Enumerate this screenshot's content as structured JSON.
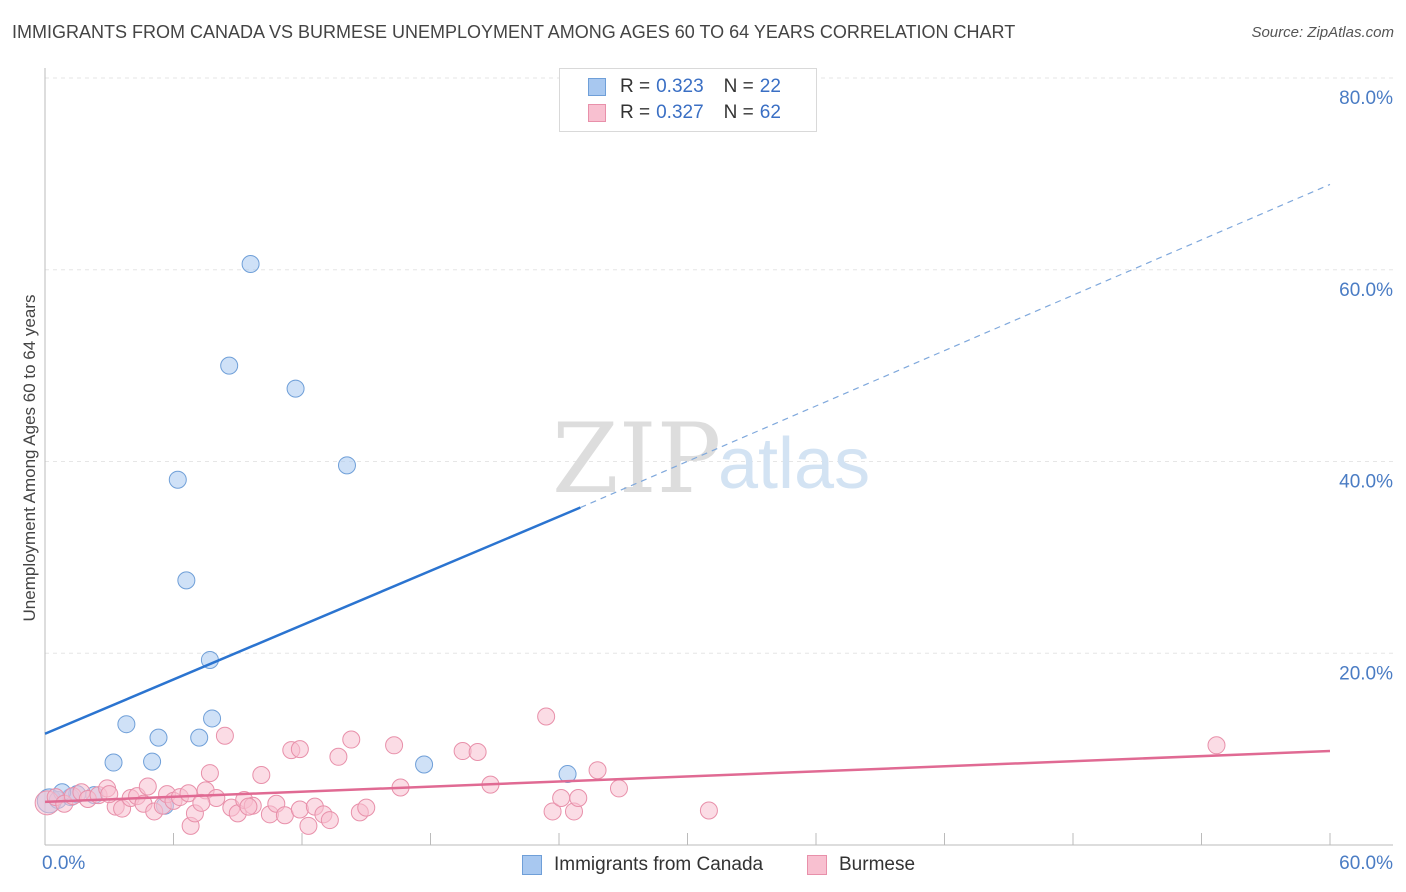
{
  "header": {
    "title": "IMMIGRANTS FROM CANADA VS BURMESE UNEMPLOYMENT AMONG AGES 60 TO 64 YEARS CORRELATION CHART",
    "source": "Source: ZipAtlas.com"
  },
  "watermark": {
    "zip": "ZIP",
    "atlas": "atlas"
  },
  "legend": {
    "rows": [
      {
        "r_label": "R =",
        "r_value": "0.323",
        "n_label": "N =",
        "n_value": "22",
        "color": "#a8c8f0",
        "border": "#6f9fd8"
      },
      {
        "r_label": "R =",
        "r_value": "0.327",
        "n_label": "N =",
        "n_value": "62",
        "color": "#f8c0d0",
        "border": "#e890aa"
      }
    ]
  },
  "bottom_legend": {
    "items": [
      {
        "label": "Immigrants from Canada",
        "color": "#a8c8f0",
        "border": "#6f9fd8"
      },
      {
        "label": "Burmese",
        "color": "#f8c0d0",
        "border": "#e890aa"
      }
    ]
  },
  "chart_data": {
    "type": "scatter",
    "title": "IMMIGRANTS FROM CANADA VS BURMESE UNEMPLOYMENT AMONG AGES 60 TO 64 YEARS CORRELATION CHART",
    "xlabel": "",
    "ylabel": "Unemployment Among Ages 60 to 64 years",
    "xlim": [
      0,
      60
    ],
    "ylim": [
      0,
      80
    ],
    "x_tick_labels": [
      {
        "value": 0,
        "label": "0.0%"
      },
      {
        "value": 60,
        "label": "60.0%"
      }
    ],
    "y_tick_labels": [
      {
        "value": 20,
        "label": "20.0%"
      },
      {
        "value": 40,
        "label": "40.0%"
      },
      {
        "value": 60,
        "label": "60.0%"
      },
      {
        "value": 80,
        "label": "80.0%"
      }
    ],
    "x_gridlines": [
      6,
      12,
      18,
      24,
      30,
      36,
      42,
      48,
      54,
      60
    ],
    "y_gridlines": [
      20,
      40,
      60,
      80
    ],
    "series": [
      {
        "name": "Immigrants from Canada",
        "color": "#a8c8f0",
        "border": "#6f9fd8",
        "line_color": "#2b74d0",
        "trend": {
          "x_start": 0,
          "y_start": 11.6,
          "x_solid_end": 25,
          "y_solid_end": 35.2,
          "x_dash_end": 60,
          "y_dash_end": 68.9
        },
        "points": [
          [
            0.2,
            4.6,
            22
          ],
          [
            0.6,
            4.7,
            10
          ],
          [
            1.2,
            5.0,
            10
          ],
          [
            1.5,
            5.3,
            10
          ],
          [
            2.3,
            5.2,
            10
          ],
          [
            3.2,
            8.6,
            10
          ],
          [
            3.8,
            12.6,
            10
          ],
          [
            5.0,
            8.7,
            10
          ],
          [
            5.3,
            11.2,
            10
          ],
          [
            5.6,
            4.1,
            10
          ],
          [
            6.2,
            38.1,
            10
          ],
          [
            6.6,
            27.6,
            10
          ],
          [
            7.2,
            11.2,
            10
          ],
          [
            7.7,
            19.3,
            10
          ],
          [
            7.8,
            13.2,
            10
          ],
          [
            8.6,
            50.0,
            10
          ],
          [
            9.6,
            60.6,
            10
          ],
          [
            11.7,
            47.6,
            10
          ],
          [
            14.1,
            39.6,
            10
          ],
          [
            17.7,
            8.4,
            10
          ],
          [
            24.4,
            7.4,
            10
          ],
          [
            0.8,
            5.5,
            10
          ]
        ]
      },
      {
        "name": "Burmese",
        "color": "#f8c0d0",
        "border": "#e890aa",
        "line_color": "#e06a93",
        "trend": {
          "x_start": 0,
          "y_start": 4.5,
          "x_solid_end": 60,
          "y_solid_end": 9.8
        },
        "points": [
          [
            0.1,
            4.4,
            18
          ],
          [
            0.5,
            5.0,
            10
          ],
          [
            0.9,
            4.3,
            10
          ],
          [
            1.3,
            5.1,
            10
          ],
          [
            1.7,
            5.5,
            10
          ],
          [
            2.0,
            4.8,
            10
          ],
          [
            2.5,
            5.2,
            10
          ],
          [
            2.9,
            5.9,
            10
          ],
          [
            3.3,
            4.0,
            10
          ],
          [
            3.6,
            3.8,
            10
          ],
          [
            4.0,
            4.9,
            10
          ],
          [
            4.3,
            5.1,
            10
          ],
          [
            4.6,
            4.3,
            10
          ],
          [
            4.8,
            6.1,
            10
          ],
          [
            5.1,
            3.5,
            10
          ],
          [
            5.5,
            4.1,
            10
          ],
          [
            5.7,
            5.3,
            10
          ],
          [
            6.0,
            4.6,
            10
          ],
          [
            6.3,
            5.0,
            10
          ],
          [
            6.7,
            5.4,
            10
          ],
          [
            6.8,
            2.0,
            10
          ],
          [
            7.0,
            3.3,
            10
          ],
          [
            7.5,
            5.7,
            10
          ],
          [
            7.7,
            7.5,
            10
          ],
          [
            8.0,
            4.9,
            10
          ],
          [
            8.4,
            11.4,
            10
          ],
          [
            8.7,
            3.9,
            10
          ],
          [
            9.0,
            3.3,
            10
          ],
          [
            9.3,
            4.7,
            10
          ],
          [
            9.7,
            4.1,
            10
          ],
          [
            10.1,
            7.3,
            10
          ],
          [
            10.5,
            3.2,
            10
          ],
          [
            10.8,
            4.3,
            10
          ],
          [
            11.2,
            3.1,
            10
          ],
          [
            11.5,
            9.9,
            10
          ],
          [
            11.9,
            3.7,
            10
          ],
          [
            12.3,
            2.0,
            10
          ],
          [
            12.6,
            4.0,
            10
          ],
          [
            13.0,
            3.2,
            10
          ],
          [
            13.3,
            2.6,
            10
          ],
          [
            13.7,
            9.2,
            10
          ],
          [
            14.3,
            11.0,
            10
          ],
          [
            14.7,
            3.4,
            10
          ],
          [
            15.0,
            3.9,
            10
          ],
          [
            16.3,
            10.4,
            10
          ],
          [
            16.6,
            6.0,
            10
          ],
          [
            19.5,
            9.8,
            10
          ],
          [
            20.2,
            9.7,
            10
          ],
          [
            20.8,
            6.3,
            10
          ],
          [
            23.4,
            13.4,
            10
          ],
          [
            23.7,
            3.5,
            10
          ],
          [
            24.1,
            4.9,
            10
          ],
          [
            24.7,
            3.5,
            10
          ],
          [
            24.9,
            4.9,
            10
          ],
          [
            25.8,
            7.8,
            10
          ],
          [
            26.8,
            5.9,
            10
          ],
          [
            31.0,
            3.6,
            10
          ],
          [
            54.7,
            10.4,
            10
          ],
          [
            3.0,
            5.3,
            10
          ],
          [
            7.3,
            4.4,
            10
          ],
          [
            11.9,
            10.0,
            10
          ],
          [
            9.5,
            4.0,
            10
          ]
        ]
      }
    ]
  }
}
